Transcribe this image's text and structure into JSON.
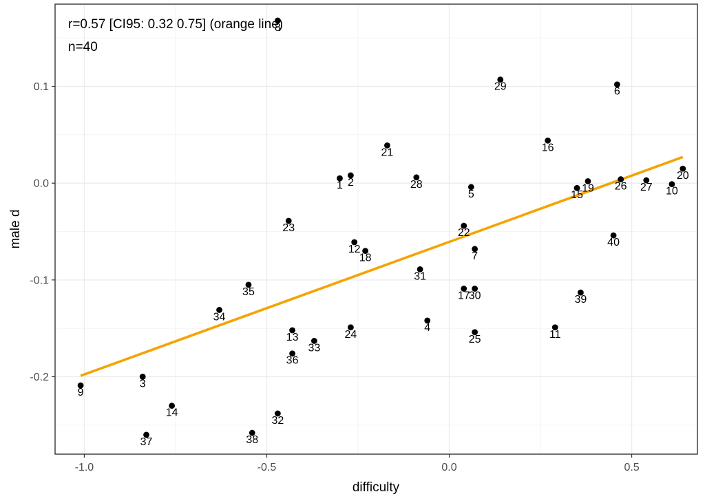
{
  "chart_data": {
    "type": "scatter",
    "title": "",
    "xlabel": "difficulty",
    "ylabel": "male d",
    "xlim": [
      -1.08,
      0.68
    ],
    "ylim": [
      -0.28,
      0.185
    ],
    "x_ticks": [
      -1.0,
      -0.5,
      0.0,
      0.5
    ],
    "x_tick_labels": [
      "-1.0",
      "-0.5",
      "0.0",
      "0.5"
    ],
    "y_ticks": [
      -0.2,
      -0.1,
      0.0,
      0.1
    ],
    "y_tick_labels": [
      "-0.2",
      "-0.1",
      "0.0",
      "0.1"
    ],
    "grid": true,
    "annotations": [
      "r=0.57 [CI95: 0.32 0.75] (orange line)",
      "n=40"
    ],
    "fit_line": {
      "color": "#f5a300",
      "x": [
        -1.01,
        0.64
      ],
      "y": [
        -0.199,
        0.027
      ]
    },
    "point_color": "#000000",
    "points": [
      {
        "label": "1",
        "x": -0.3,
        "y": 0.005
      },
      {
        "label": "2",
        "x": -0.27,
        "y": 0.008
      },
      {
        "label": "3",
        "x": -0.84,
        "y": -0.2
      },
      {
        "label": "4",
        "x": -0.06,
        "y": -0.142
      },
      {
        "label": "5",
        "x": 0.06,
        "y": -0.004
      },
      {
        "label": "6",
        "x": 0.46,
        "y": 0.102
      },
      {
        "label": "7",
        "x": 0.07,
        "y": -0.068
      },
      {
        "label": "8",
        "x": -0.47,
        "y": 0.168
      },
      {
        "label": "9",
        "x": -1.01,
        "y": -0.209
      },
      {
        "label": "10",
        "x": 0.61,
        "y": -0.001
      },
      {
        "label": "11",
        "x": 0.29,
        "y": -0.149
      },
      {
        "label": "12",
        "x": -0.26,
        "y": -0.061
      },
      {
        "label": "13",
        "x": -0.43,
        "y": -0.152
      },
      {
        "label": "14",
        "x": -0.76,
        "y": -0.23
      },
      {
        "label": "15",
        "x": 0.35,
        "y": -0.005
      },
      {
        "label": "16",
        "x": 0.27,
        "y": 0.044
      },
      {
        "label": "17",
        "x": 0.04,
        "y": -0.109
      },
      {
        "label": "18",
        "x": -0.23,
        "y": -0.07
      },
      {
        "label": "19",
        "x": 0.38,
        "y": 0.002
      },
      {
        "label": "20",
        "x": 0.64,
        "y": 0.015
      },
      {
        "label": "21",
        "x": -0.17,
        "y": 0.039
      },
      {
        "label": "22",
        "x": 0.04,
        "y": -0.044
      },
      {
        "label": "23",
        "x": -0.44,
        "y": -0.039
      },
      {
        "label": "24",
        "x": -0.27,
        "y": -0.149
      },
      {
        "label": "25",
        "x": 0.07,
        "y": -0.154
      },
      {
        "label": "26",
        "x": 0.47,
        "y": 0.004
      },
      {
        "label": "27",
        "x": 0.54,
        "y": 0.003
      },
      {
        "label": "28",
        "x": -0.09,
        "y": 0.006
      },
      {
        "label": "29",
        "x": 0.14,
        "y": 0.107
      },
      {
        "label": "30",
        "x": 0.07,
        "y": -0.109
      },
      {
        "label": "31",
        "x": -0.08,
        "y": -0.089
      },
      {
        "label": "32",
        "x": -0.47,
        "y": -0.238
      },
      {
        "label": "33",
        "x": -0.37,
        "y": -0.163
      },
      {
        "label": "34",
        "x": -0.63,
        "y": -0.131
      },
      {
        "label": "35",
        "x": -0.55,
        "y": -0.105
      },
      {
        "label": "36",
        "x": -0.43,
        "y": -0.176
      },
      {
        "label": "37",
        "x": -0.83,
        "y": -0.26
      },
      {
        "label": "38",
        "x": -0.54,
        "y": -0.258
      },
      {
        "label": "39",
        "x": 0.36,
        "y": -0.113
      },
      {
        "label": "40",
        "x": 0.45,
        "y": -0.054
      }
    ]
  }
}
